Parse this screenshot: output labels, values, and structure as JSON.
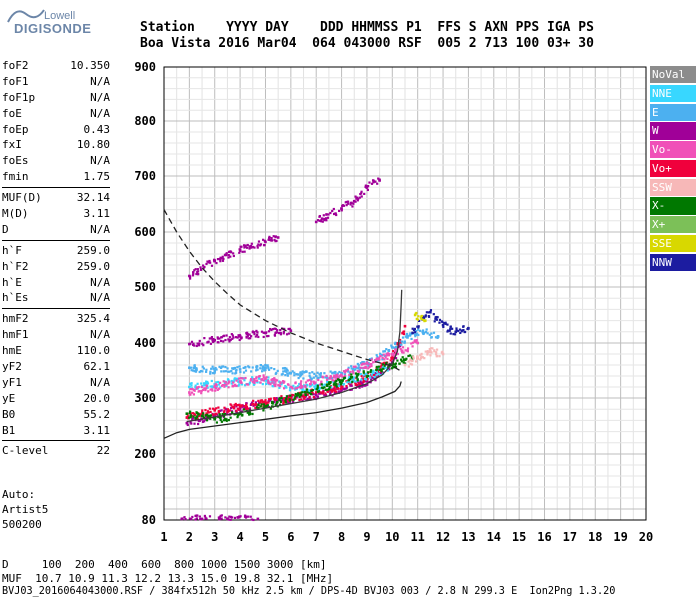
{
  "logo": {
    "line1": "Lowell",
    "line2": "DIGISONDE"
  },
  "header": {
    "row1": "Station    YYYY DAY    DDD HHMMSS P1  FFS S AXN PPS IGA PS",
    "row2": "Boa Vista 2016 Mar04  064 043000 RSF  005 2 713 100 03+ 30"
  },
  "params": [
    [
      [
        "foF2",
        "10.350"
      ],
      [
        "foF1",
        "N/A"
      ],
      [
        "foF1p",
        "N/A"
      ],
      [
        "foE",
        "N/A"
      ],
      [
        "foEp",
        "0.43"
      ],
      [
        "fxI",
        "10.80"
      ],
      [
        "foEs",
        "N/A"
      ],
      [
        "fmin",
        "1.75"
      ]
    ],
    [
      [
        "MUF(D)",
        "32.14"
      ],
      [
        "M(D)",
        "3.11"
      ],
      [
        "D",
        "N/A"
      ]
    ],
    [
      [
        "h`F",
        "259.0"
      ],
      [
        "h`F2",
        "259.0"
      ],
      [
        "h`E",
        "N/A"
      ],
      [
        "h`Es",
        "N/A"
      ]
    ],
    [
      [
        "hmF2",
        "325.4"
      ],
      [
        "hmF1",
        "N/A"
      ],
      [
        "hmE",
        "110.0"
      ],
      [
        "yF2",
        "62.1"
      ],
      [
        "yF1",
        "N/A"
      ],
      [
        "yE",
        "20.0"
      ],
      [
        "B0",
        "55.2"
      ],
      [
        "B1",
        "3.11"
      ]
    ],
    [
      [
        "C-level",
        "22"
      ]
    ]
  ],
  "auto": [
    "Auto:",
    "Artist5",
    "500200"
  ],
  "bottom": {
    "d_row": "D     100  200  400  600  800 1000 1500 3000 [km]",
    "muf_row": "MUF  10.7 10.9 11.3 12.2 13.3 15.0 19.8 32.1 [MHz]",
    "file_row": "BVJ03_2016064043000.RSF / 384fx512h 50 kHz 2.5 km / DPS-4D BVJ03 003 / 2.8 N 299.3 E  Ion2Png 1.3.20"
  },
  "legend": [
    {
      "label": "NoVal",
      "color": "#8c8c8c"
    },
    {
      "label": "NNE",
      "color": "#38d7ff"
    },
    {
      "label": "E",
      "color": "#4cb0f0"
    },
    {
      "label": "W",
      "color": "#a00098"
    },
    {
      "label": "Vo-",
      "color": "#f050b8"
    },
    {
      "label": "Vo+",
      "color": "#f0003c"
    },
    {
      "label": "SSW",
      "color": "#f7b8b8"
    },
    {
      "label": "X-",
      "color": "#007800"
    },
    {
      "label": "X+",
      "color": "#7cc058"
    },
    {
      "label": "SSE",
      "color": "#d8d800"
    },
    {
      "label": "NNW",
      "color": "#1c1ca0"
    }
  ],
  "chart_data": {
    "type": "scatter",
    "title": "",
    "xlabel": "",
    "ylabel": "",
    "xlim": [
      1,
      20
    ],
    "ylim": [
      80,
      900
    ],
    "x_ticks": [
      1,
      2,
      3,
      4,
      5,
      6,
      7,
      8,
      9,
      10,
      11,
      12,
      13,
      14,
      15,
      16,
      17,
      18,
      19,
      20
    ],
    "y_ticks": [
      80,
      200,
      300,
      400,
      500,
      600,
      700,
      800,
      900
    ],
    "grid": true,
    "legend_position": "right",
    "series": [
      {
        "color": "#a00098",
        "points": [
          [
            1.9,
            255
          ],
          [
            2.5,
            262
          ],
          [
            3,
            268
          ],
          [
            3.5,
            275
          ],
          [
            4,
            282
          ],
          [
            5,
            290
          ],
          [
            6,
            298
          ],
          [
            7,
            305
          ],
          [
            8,
            315
          ],
          [
            9,
            330
          ],
          [
            9.5,
            345
          ],
          [
            10,
            365
          ],
          [
            10.3,
            395
          ]
        ]
      },
      {
        "color": "#f0003c",
        "points": [
          [
            1.9,
            265
          ],
          [
            2.5,
            272
          ],
          [
            3,
            278
          ],
          [
            4,
            285
          ],
          [
            5,
            292
          ],
          [
            6,
            300
          ],
          [
            7,
            310
          ],
          [
            8,
            320
          ],
          [
            9,
            338
          ],
          [
            9.5,
            352
          ],
          [
            10,
            372
          ],
          [
            10.3,
            405
          ],
          [
            10.5,
            430
          ]
        ]
      },
      {
        "color": "#4cb0f0",
        "points": [
          [
            2,
            355
          ],
          [
            3,
            350
          ],
          [
            4,
            352
          ],
          [
            5,
            355
          ],
          [
            6,
            345
          ],
          [
            7,
            340
          ],
          [
            8,
            345
          ],
          [
            9,
            362
          ],
          [
            9.6,
            378
          ],
          [
            10,
            392
          ],
          [
            10.6,
            410
          ],
          [
            11.2,
            420
          ],
          [
            11.8,
            412
          ]
        ]
      },
      {
        "color": "#38d7ff",
        "points": [
          [
            2,
            320
          ],
          [
            3,
            325
          ],
          [
            4,
            330
          ],
          [
            5,
            332
          ],
          [
            6,
            320
          ],
          [
            7,
            318
          ],
          [
            8,
            330
          ],
          [
            9,
            340
          ],
          [
            9.8,
            352
          ]
        ]
      },
      {
        "color": "#f050b8",
        "points": [
          [
            2,
            310
          ],
          [
            3,
            320
          ],
          [
            4,
            330
          ],
          [
            5,
            335
          ],
          [
            6,
            320
          ],
          [
            8,
            340
          ],
          [
            10,
            380
          ],
          [
            11,
            400
          ]
        ]
      },
      {
        "color": "#007800",
        "points": [
          [
            1.9,
            272
          ],
          [
            2.5,
            268
          ],
          [
            3,
            262
          ],
          [
            4,
            272
          ],
          [
            5,
            285
          ],
          [
            10,
            360
          ],
          [
            10.8,
            375
          ]
        ]
      },
      {
        "color": "#f7b8b8",
        "points": [
          [
            10.5,
            360
          ],
          [
            11,
            372
          ],
          [
            11.5,
            385
          ],
          [
            12,
            380
          ]
        ]
      },
      {
        "color": "#1c1ca0",
        "points": [
          [
            10.8,
            418
          ],
          [
            11.2,
            442
          ],
          [
            11.5,
            455
          ],
          [
            12,
            432
          ],
          [
            12.5,
            420
          ],
          [
            13,
            426
          ]
        ]
      },
      {
        "color": "#d8d800",
        "points": [
          [
            10.9,
            450
          ],
          [
            11.3,
            440
          ]
        ]
      },
      {
        "color": "#a00098",
        "points": [
          [
            2,
            520
          ],
          [
            3,
            548
          ],
          [
            4,
            568
          ],
          [
            5,
            582
          ],
          [
            5.5,
            590
          ]
        ]
      },
      {
        "color": "#a00098",
        "points": [
          [
            7,
            618
          ],
          [
            8,
            642
          ],
          [
            8.5,
            655
          ],
          [
            9,
            680
          ],
          [
            9.5,
            692
          ]
        ]
      },
      {
        "color": "#a00098",
        "points": [
          [
            2,
            398
          ],
          [
            3,
            405
          ],
          [
            4,
            412
          ],
          [
            5,
            418
          ],
          [
            6,
            422
          ]
        ]
      },
      {
        "color": "#a00098",
        "points": [
          [
            1.7,
            82
          ],
          [
            2.5,
            82
          ],
          [
            3.5,
            82
          ],
          [
            4.7,
            82
          ]
        ]
      }
    ],
    "curves": [
      {
        "name": "dashed",
        "style": "dashed",
        "points": [
          [
            1,
            640
          ],
          [
            1.5,
            600
          ],
          [
            2,
            565
          ],
          [
            2.5,
            535
          ],
          [
            3,
            510
          ],
          [
            3.5,
            488
          ],
          [
            4,
            468
          ],
          [
            5,
            440
          ],
          [
            6,
            418
          ],
          [
            7,
            400
          ],
          [
            8,
            385
          ],
          [
            9,
            370
          ],
          [
            10,
            358
          ],
          [
            10.3,
            350
          ]
        ]
      },
      {
        "name": "profile",
        "style": "solid",
        "points": [
          [
            1,
            228
          ],
          [
            1.5,
            238
          ],
          [
            2,
            244
          ],
          [
            3,
            250
          ],
          [
            4,
            256
          ],
          [
            5,
            262
          ],
          [
            6,
            268
          ],
          [
            7,
            274
          ],
          [
            8,
            282
          ],
          [
            9,
            292
          ],
          [
            9.6,
            302
          ],
          [
            10.1,
            312
          ],
          [
            10.3,
            322
          ],
          [
            10.35,
            330
          ]
        ]
      },
      {
        "name": "trace",
        "style": "solid",
        "points": [
          [
            1.9,
            258
          ],
          [
            3,
            266
          ],
          [
            4,
            274
          ],
          [
            5,
            282
          ],
          [
            6,
            290
          ],
          [
            7,
            298
          ],
          [
            8,
            310
          ],
          [
            9,
            326
          ],
          [
            9.6,
            342
          ],
          [
            10,
            362
          ],
          [
            10.2,
            385
          ],
          [
            10.3,
            420
          ],
          [
            10.35,
            470
          ],
          [
            10.37,
            495
          ]
        ]
      }
    ]
  }
}
